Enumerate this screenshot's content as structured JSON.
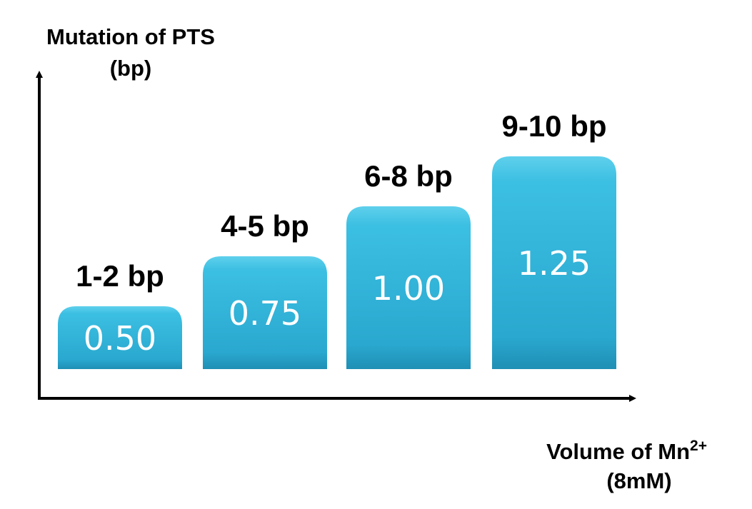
{
  "chart_data": {
    "type": "bar",
    "ylabel_line1": "Mutation of PTS",
    "ylabel_line2": "(bp)",
    "xlabel_line1": "Volume of Mn",
    "xlabel_sup": "2+",
    "xlabel_line2": "(8mM)",
    "categories": [
      "1-2 bp",
      "4-5 bp",
      "6-8 bp",
      "9-10 bp"
    ],
    "values": [
      0.5,
      0.75,
      1.0,
      1.25
    ],
    "value_labels": [
      "0.50",
      "0.75",
      "1.00",
      "1.25"
    ],
    "grid": false,
    "legend": "none"
  },
  "colors": {
    "bar_top": "#5fd0ec",
    "bar_mid": "#33b7dc",
    "bar_bottom": "#1f8fb5",
    "axis": "#000000",
    "value_text": "#ffffff"
  }
}
